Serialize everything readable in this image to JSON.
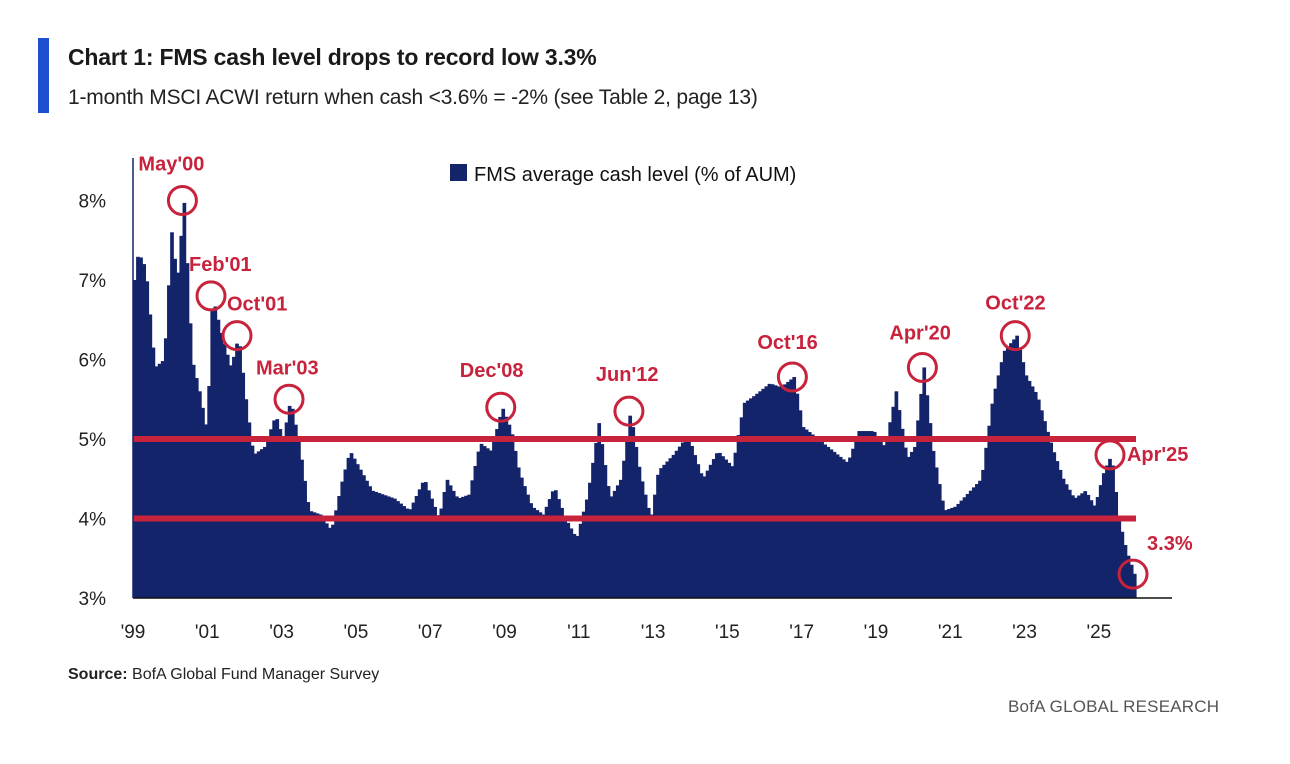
{
  "header": {
    "title": "Chart 1: FMS cash level drops to record low 3.3%",
    "subtitle": "1-month MSCI ACWI return when cash <3.6% = -2% (see Table 2, page 13)"
  },
  "footer": {
    "source_label": "Source:",
    "source_text": "BofA Global Fund Manager Survey",
    "brand": "BofA GLOBAL RESEARCH"
  },
  "colors": {
    "bar": "#14246b",
    "threshold_line": "#c8233c",
    "annotation": "#c8233c",
    "axis_text": "#222222"
  },
  "chart_data": {
    "type": "bar",
    "title": "Chart 1: FMS cash level drops to record low 3.3%",
    "legend": {
      "label": "FMS average cash level (% of AUM)",
      "placement": "top-center"
    },
    "x_start_year": 1999.0,
    "x_end_year": 2026.0,
    "ylim": [
      3,
      8.6
    ],
    "ytick_values": [
      3,
      4,
      5,
      6,
      7,
      8
    ],
    "ytick_labels": [
      "3%",
      "4%",
      "5%",
      "6%",
      "7%",
      "8%"
    ],
    "xtick_years": [
      1999,
      2001,
      2003,
      2005,
      2007,
      2009,
      2011,
      2013,
      2015,
      2017,
      2019,
      2021,
      2023,
      2025
    ],
    "xtick_labels": [
      "'99",
      "'01",
      "'03",
      "'05",
      "'07",
      "'09",
      "'11",
      "'13",
      "'15",
      "'17",
      "'19",
      "'21",
      "'23",
      "'25"
    ],
    "thresholds": [
      5.0,
      4.0
    ],
    "anchor_points": [
      [
        1999.0,
        7.0
      ],
      [
        1999.1,
        7.35
      ],
      [
        1999.3,
        7.15
      ],
      [
        1999.55,
        5.9
      ],
      [
        1999.8,
        6.0
      ],
      [
        2000.0,
        7.6
      ],
      [
        2000.15,
        7.0
      ],
      [
        2000.33,
        8.0
      ],
      [
        2000.55,
        6.0
      ],
      [
        2000.75,
        5.6
      ],
      [
        2000.95,
        5.1
      ],
      [
        2001.1,
        6.8
      ],
      [
        2001.35,
        6.3
      ],
      [
        2001.6,
        5.9
      ],
      [
        2001.8,
        6.3
      ],
      [
        2002.0,
        5.5
      ],
      [
        2002.2,
        4.8
      ],
      [
        2002.5,
        4.9
      ],
      [
        2002.8,
        5.3
      ],
      [
        2003.0,
        5.0
      ],
      [
        2003.2,
        5.5
      ],
      [
        2003.45,
        4.9
      ],
      [
        2003.7,
        4.1
      ],
      [
        2004.0,
        4.05
      ],
      [
        2004.3,
        3.85
      ],
      [
        2004.6,
        4.5
      ],
      [
        2004.8,
        4.85
      ],
      [
        2005.1,
        4.6
      ],
      [
        2005.4,
        4.35
      ],
      [
        2005.7,
        4.3
      ],
      [
        2006.0,
        4.25
      ],
      [
        2006.4,
        4.1
      ],
      [
        2006.8,
        4.5
      ],
      [
        2007.2,
        4.0
      ],
      [
        2007.4,
        4.5
      ],
      [
        2007.7,
        4.25
      ],
      [
        2008.0,
        4.3
      ],
      [
        2008.3,
        4.95
      ],
      [
        2008.6,
        4.85
      ],
      [
        2008.9,
        5.4
      ],
      [
        2009.15,
        5.1
      ],
      [
        2009.35,
        4.6
      ],
      [
        2009.7,
        4.15
      ],
      [
        2010.0,
        4.05
      ],
      [
        2010.3,
        4.4
      ],
      [
        2010.6,
        4.0
      ],
      [
        2010.9,
        3.75
      ],
      [
        2011.2,
        4.3
      ],
      [
        2011.5,
        5.2
      ],
      [
        2011.8,
        4.25
      ],
      [
        2012.1,
        4.5
      ],
      [
        2012.35,
        5.35
      ],
      [
        2012.6,
        4.6
      ],
      [
        2012.9,
        4.0
      ],
      [
        2013.1,
        4.6
      ],
      [
        2013.5,
        4.8
      ],
      [
        2013.9,
        5.05
      ],
      [
        2014.3,
        4.5
      ],
      [
        2014.7,
        4.85
      ],
      [
        2015.1,
        4.65
      ],
      [
        2015.4,
        5.45
      ],
      [
        2015.7,
        5.55
      ],
      [
        2016.1,
        5.7
      ],
      [
        2016.4,
        5.65
      ],
      [
        2016.75,
        5.78
      ],
      [
        2017.0,
        5.15
      ],
      [
        2017.4,
        5.0
      ],
      [
        2017.8,
        4.85
      ],
      [
        2018.2,
        4.7
      ],
      [
        2018.5,
        5.1
      ],
      [
        2018.9,
        5.1
      ],
      [
        2019.2,
        4.9
      ],
      [
        2019.5,
        5.6
      ],
      [
        2019.8,
        4.75
      ],
      [
        2020.0,
        4.9
      ],
      [
        2020.25,
        5.9
      ],
      [
        2020.5,
        4.85
      ],
      [
        2020.8,
        4.1
      ],
      [
        2021.1,
        4.15
      ],
      [
        2021.4,
        4.3
      ],
      [
        2021.8,
        4.5
      ],
      [
        2022.1,
        5.5
      ],
      [
        2022.4,
        6.1
      ],
      [
        2022.75,
        6.3
      ],
      [
        2023.0,
        5.8
      ],
      [
        2023.3,
        5.55
      ],
      [
        2023.7,
        4.9
      ],
      [
        2024.0,
        4.5
      ],
      [
        2024.3,
        4.25
      ],
      [
        2024.6,
        4.35
      ],
      [
        2024.85,
        4.15
      ],
      [
        2025.1,
        4.6
      ],
      [
        2025.3,
        4.8
      ],
      [
        2025.5,
        4.0
      ],
      [
        2025.7,
        3.6
      ],
      [
        2025.92,
        3.3
      ]
    ],
    "annotations": [
      {
        "label": "May'00",
        "x": 2000.33,
        "y": 8.0
      },
      {
        "label": "Feb'01",
        "x": 2001.1,
        "y": 6.8
      },
      {
        "label": "Oct'01",
        "x": 2001.8,
        "y": 6.3
      },
      {
        "label": "Mar'03",
        "x": 2003.2,
        "y": 5.5
      },
      {
        "label": "Dec'08",
        "x": 2008.9,
        "y": 5.4
      },
      {
        "label": "Jun'12",
        "x": 2012.35,
        "y": 5.35
      },
      {
        "label": "Oct'16",
        "x": 2016.75,
        "y": 5.78
      },
      {
        "label": "Apr'20",
        "x": 2020.25,
        "y": 5.9
      },
      {
        "label": "Oct'22",
        "x": 2022.75,
        "y": 6.3
      },
      {
        "label": "Apr'25",
        "x": 2025.3,
        "y": 4.8
      },
      {
        "label": "3.3%",
        "x": 2025.92,
        "y": 3.3
      }
    ]
  }
}
